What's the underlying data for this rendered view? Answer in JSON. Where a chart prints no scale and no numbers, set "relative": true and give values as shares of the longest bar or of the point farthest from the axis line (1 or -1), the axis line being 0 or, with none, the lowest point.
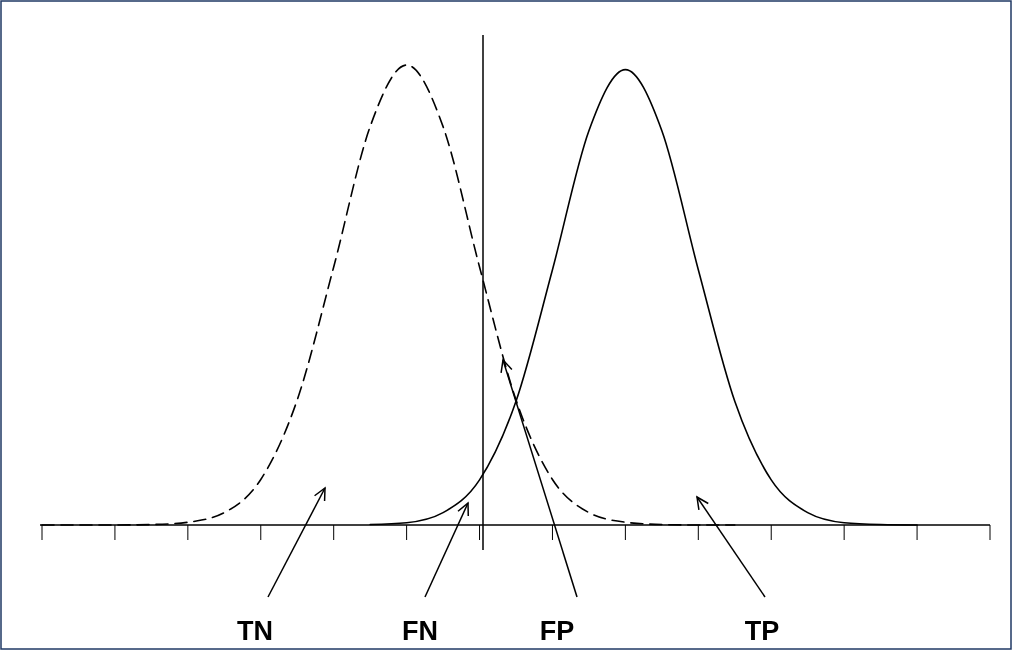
{
  "chart_data": {
    "type": "line",
    "relative": true,
    "categories": [
      null,
      null,
      null,
      null,
      null,
      null,
      null,
      null,
      null,
      null,
      null,
      null,
      null,
      null,
      null,
      null,
      null,
      null,
      null,
      null,
      null,
      null,
      null,
      null,
      null,
      null,
      null
    ],
    "series": [
      {
        "color": "#000000",
        "line_style": "dashed",
        "values": [
          0,
          0,
          0,
          0.001,
          0.006,
          0.027,
          0.099,
          0.272,
          0.561,
          0.866,
          1,
          0.866,
          0.561,
          0.272,
          0.099,
          0.027,
          0.006,
          0.001,
          0,
          0,
          null,
          null,
          null,
          null,
          null,
          null,
          null
        ]
      },
      {
        "color": "#000000",
        "line_style": "solid",
        "values": [
          null,
          null,
          null,
          null,
          null,
          null,
          null,
          null,
          null,
          0.001,
          0.005,
          0.027,
          0.098,
          0.269,
          0.555,
          0.857,
          0.99,
          0.857,
          0.555,
          0.269,
          0.098,
          0.027,
          0.005,
          0.001,
          0,
          null,
          null
        ]
      }
    ],
    "annotations": [
      "TN",
      "FN",
      "FP",
      "TP"
    ]
  }
}
